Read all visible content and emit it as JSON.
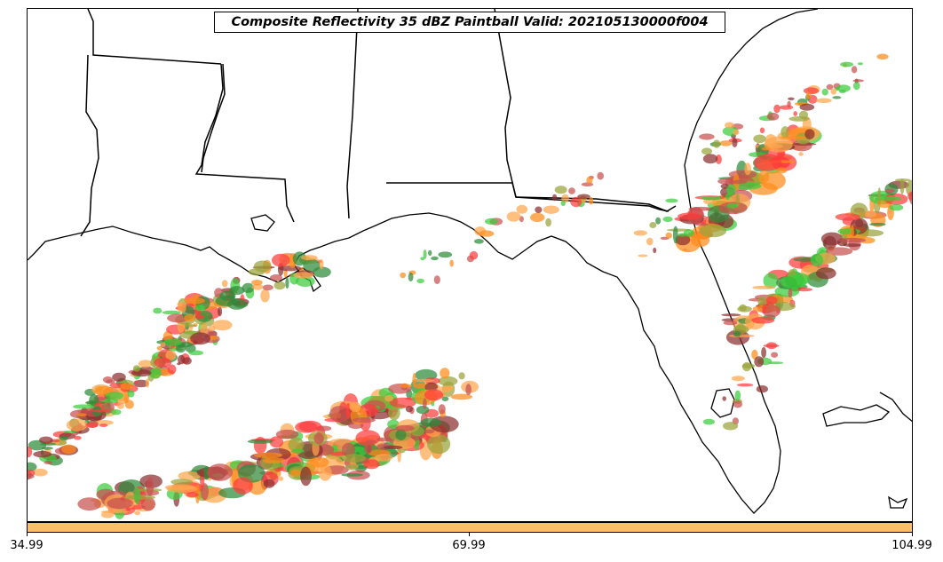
{
  "title": "Composite Reflectivity 35 dBZ Paintball Valid: 202105130000f004",
  "colorbar": {
    "color": "#FFBF66",
    "tick_labels": [
      "34.99",
      "69.99",
      "104.99"
    ]
  },
  "member_colors": [
    "#ff3b3b",
    "#ff8c1a",
    "#2e8b3a",
    "#8b2f2f",
    "#9aa33a",
    "#3ccc3c",
    "#ffa64d",
    "#c75050"
  ]
}
